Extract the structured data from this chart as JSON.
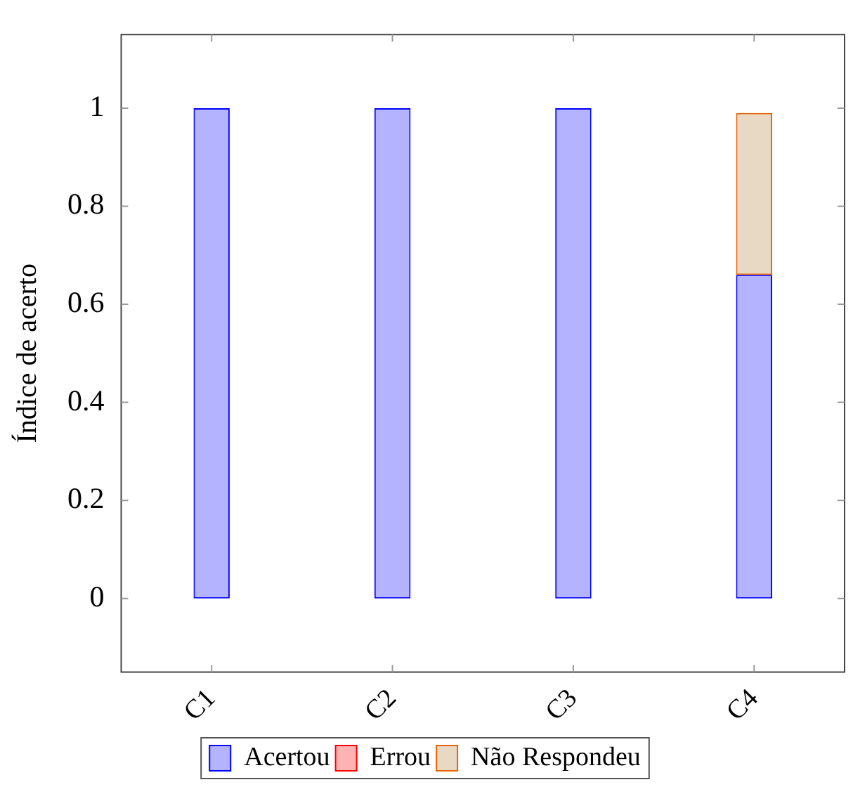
{
  "chart_data": {
    "type": "bar",
    "stacked": true,
    "ylabel": "Índice de acerto",
    "categories": [
      "C1",
      "C2",
      "C3",
      "C4"
    ],
    "series": [
      {
        "name": "Acertou",
        "color": "#b3b3ff",
        "values": [
          1,
          1,
          1,
          0.66
        ]
      },
      {
        "name": "Errou",
        "color": "#ffb3b3",
        "values": [
          0,
          0,
          0,
          0
        ]
      },
      {
        "name": "Não Respondeu",
        "color": "#e8d9c5",
        "values": [
          0,
          0,
          0,
          0.33
        ]
      }
    ],
    "ylim": [
      -0.15,
      1.15
    ],
    "yticks": [
      0,
      0.2,
      0.4,
      0.6,
      0.8,
      1
    ],
    "grid": false,
    "legend": "bottom"
  }
}
